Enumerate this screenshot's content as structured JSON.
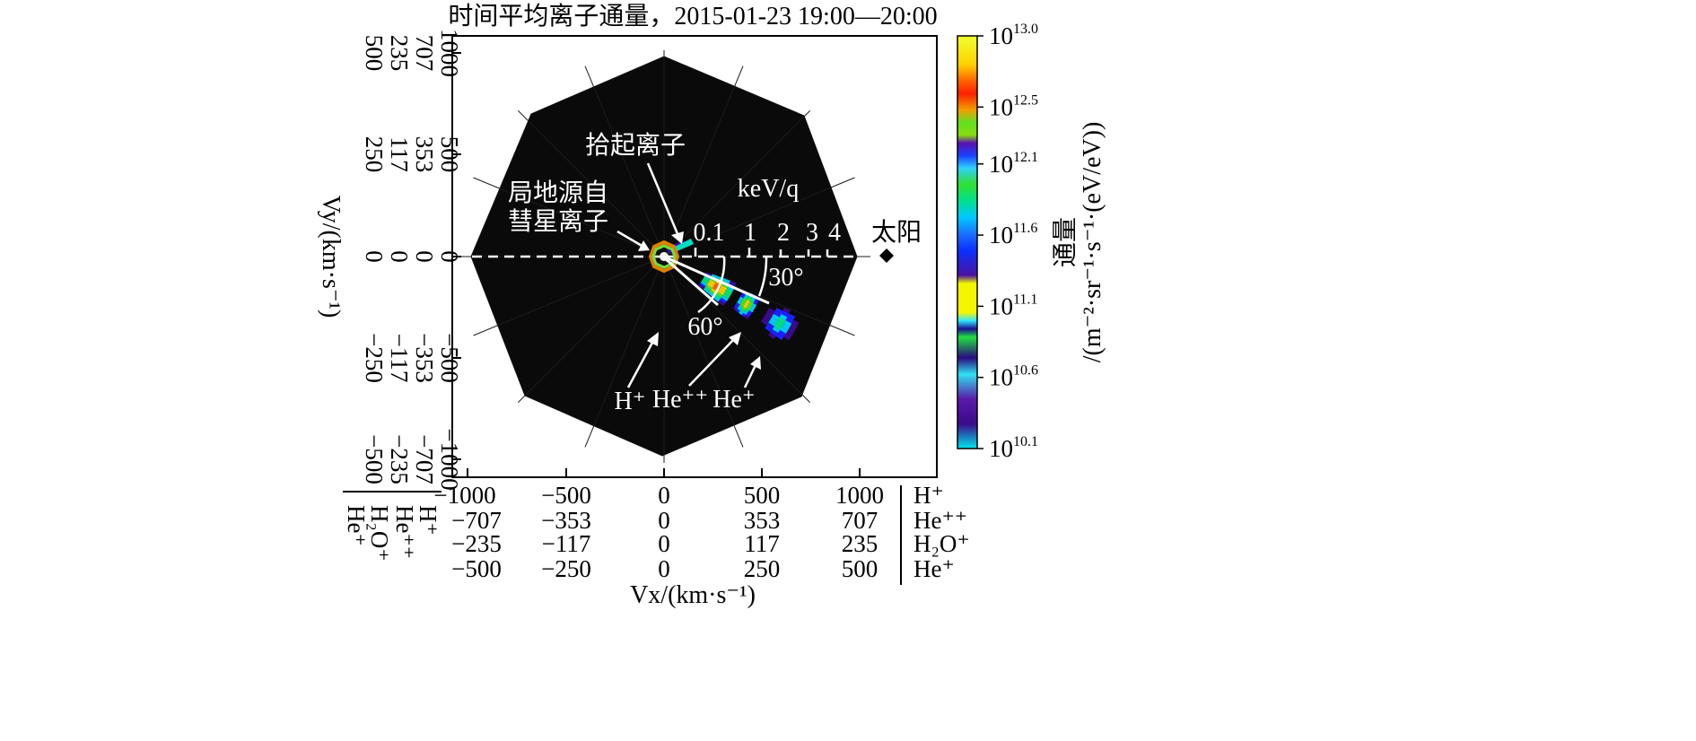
{
  "chart_data": {
    "type": "heatmap",
    "title": "时间平均离子通量，2015-01-23 19:00—20:00",
    "xlabel": "Vx/(km·s⁻¹)",
    "ylabel": "Vy/(km·s⁻¹)",
    "xlim": [
      -1000,
      1000
    ],
    "ylim": [
      -1000,
      1000
    ],
    "x_tick_rows": [
      {
        "species": "H⁺",
        "ticks": [
          "−1000",
          "−500",
          "0",
          "500",
          "1000"
        ]
      },
      {
        "species": "He⁺⁺",
        "ticks": [
          "−707",
          "−353",
          "0",
          "353",
          "707"
        ]
      },
      {
        "species": "H₂O⁺",
        "ticks": [
          "−235",
          "−117",
          "0",
          "117",
          "235"
        ]
      },
      {
        "species": "He⁺",
        "ticks": [
          "−500",
          "−250",
          "0",
          "250",
          "500"
        ]
      }
    ],
    "y_tick_columns": [
      {
        "species": "H⁺",
        "ticks": [
          "1000",
          "500",
          "0",
          "−500",
          "−1000"
        ]
      },
      {
        "species": "He⁺⁺",
        "ticks": [
          "707",
          "353",
          "0",
          "−353",
          "−707"
        ]
      },
      {
        "species": "H₂O⁺",
        "ticks": [
          "235",
          "117",
          "0",
          "−117",
          "−235"
        ]
      },
      {
        "species": "He⁺",
        "ticks": [
          "500",
          "250",
          "0",
          "−250",
          "−500"
        ]
      }
    ],
    "energy_unit": "keV/q",
    "energy_ticks": [
      "0.1",
      "1",
      "2",
      "3",
      "4"
    ],
    "angles": [
      "30°",
      "60°"
    ],
    "annotations": [
      {
        "text": "拾起离子"
      },
      {
        "text_lines": [
          "局地源自",
          "彗星离子"
        ]
      },
      {
        "text": "H⁺"
      },
      {
        "text": "He⁺⁺"
      },
      {
        "text": "He⁺"
      },
      {
        "text": "太阳"
      }
    ],
    "colorbar": {
      "label": "通量",
      "unit": "/(m⁻²·sr⁻¹·s⁻¹·(eV/eV))",
      "ticks": [
        {
          "base": "10",
          "exp": "13.0",
          "value": 13.0
        },
        {
          "base": "10",
          "exp": "12.5",
          "value": 12.5
        },
        {
          "base": "10",
          "exp": "12.1",
          "value": 12.1
        },
        {
          "base": "10",
          "exp": "11.6",
          "value": 11.6
        },
        {
          "base": "10",
          "exp": "11.1",
          "value": 11.1
        },
        {
          "base": "10",
          "exp": "10.6",
          "value": 10.6
        },
        {
          "base": "10",
          "exp": "10.1",
          "value": 10.1
        }
      ],
      "range": [
        10.1,
        13.0
      ]
    },
    "populations": [
      {
        "name": "H⁺",
        "angle_deg": -30,
        "energy_range_keV": [
          0.1,
          0.8
        ],
        "peak_log_flux": 12.9
      },
      {
        "name": "He⁺⁺",
        "angle_deg": -30,
        "energy_range_keV": [
          1.0,
          1.6
        ],
        "peak_log_flux": 12.6
      },
      {
        "name": "He⁺",
        "angle_deg": -30,
        "energy_range_keV": [
          2.0,
          3.2
        ],
        "peak_log_flux": 11.9
      }
    ]
  }
}
